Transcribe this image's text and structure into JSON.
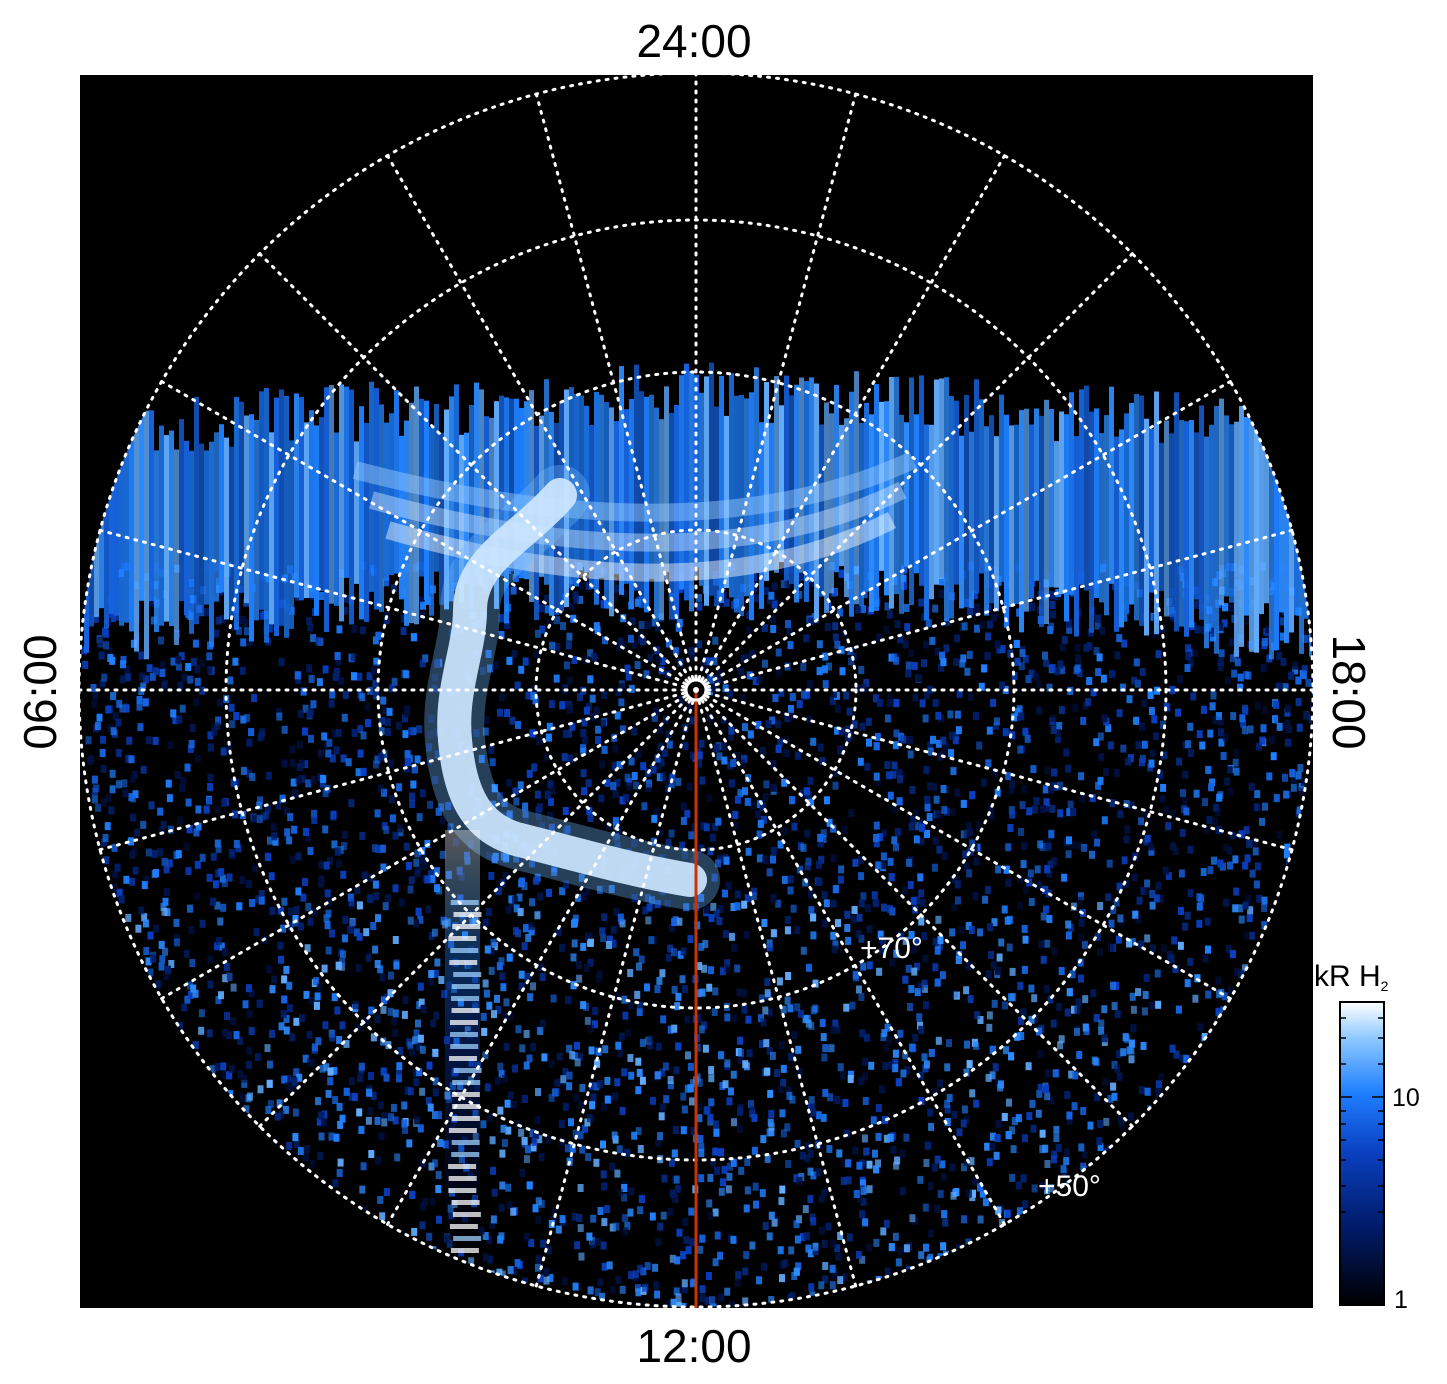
{
  "projection": "polar",
  "local_time_labels": {
    "top": "24:00",
    "bottom": "12:00",
    "left": "06:00",
    "right": "18:00"
  },
  "latitude_labels": {
    "inner": "+70°",
    "outer": "+50°"
  },
  "colorbar": {
    "title_main": "kR H",
    "title_sub": "2",
    "ticks": [
      "10",
      "1"
    ],
    "scale": "log",
    "range": [
      1,
      30
    ],
    "colors": [
      "#000000",
      "#001a66",
      "#0a3fbf",
      "#1e7fff",
      "#8ec8ff",
      "#ffffff"
    ]
  },
  "colors": {
    "background": "#000000",
    "grid": "#ffffff",
    "meridian_line": "#cc3300",
    "aurora_bright": "#ffffff",
    "aurora_mid": "#2d8cff",
    "noise": "#1b4fd6"
  },
  "grid": {
    "style": "dotted",
    "meridian_count": 24
  }
}
